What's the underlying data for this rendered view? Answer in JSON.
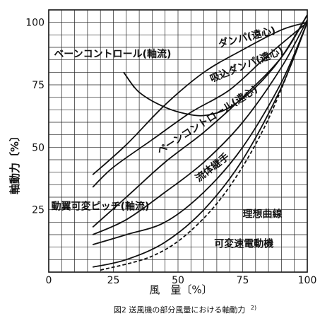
{
  "chart_data": {
    "type": "line",
    "xlabel": "風　量〔%〕",
    "ylabel": "軸動力〔%〕",
    "xlim": [
      0,
      100
    ],
    "ylim": [
      0,
      105
    ],
    "xticks": [
      "0",
      "25",
      "50",
      "75",
      "100"
    ],
    "yticks": [
      "25",
      "50",
      "75",
      "100"
    ],
    "grid": true,
    "caption": "図2 送風機の部分風量における軸動力",
    "caption_ref": "2)",
    "series": [
      {
        "name": "ダンパ(遠心)",
        "dash": false,
        "x": [
          17,
          30,
          45,
          60,
          75,
          90,
          100
        ],
        "y": [
          39,
          51,
          67,
          80,
          89,
          97,
          100
        ]
      },
      {
        "name": "吸込ダンパ(遠心)",
        "dash": false,
        "x": [
          17,
          25,
          40,
          55,
          70,
          85,
          100
        ],
        "y": [
          34,
          42,
          53,
          64,
          73,
          87,
          100
        ]
      },
      {
        "name": "ベーンコントロール(軸流)",
        "dash": false,
        "x": [
          29,
          35,
          45,
          55,
          62,
          70,
          80,
          90,
          100
        ],
        "y": [
          80,
          72,
          66,
          63,
          63,
          66,
          74,
          86,
          103
        ]
      },
      {
        "name": "ベーンコントロール(遠心)",
        "dash": false,
        "x": [
          17,
          30,
          45,
          60,
          75,
          90,
          100
        ],
        "y": [
          18,
          30,
          44,
          56,
          70,
          86,
          103
        ]
      },
      {
        "name": "流体継手",
        "dash": false,
        "x": [
          17,
          30,
          45,
          60,
          75,
          90,
          100
        ],
        "y": [
          15,
          21,
          32,
          44,
          60,
          82,
          101
        ]
      },
      {
        "name": "動翼可変ピッチ(軸流)",
        "dash": false,
        "x": [
          17,
          30,
          45,
          60,
          75,
          90,
          100
        ],
        "y": [
          11,
          15,
          20,
          32,
          50,
          76,
          100
        ]
      },
      {
        "name": "理想曲線",
        "dash": true,
        "x": [
          20,
          40,
          55,
          70,
          85,
          100
        ],
        "y": [
          0.8,
          6.4,
          16.6,
          34.3,
          61.4,
          100
        ]
      },
      {
        "name": "可変速電動機",
        "dash": false,
        "x": [
          17,
          30,
          45,
          60,
          75,
          90,
          100
        ],
        "y": [
          2,
          5,
          12,
          25,
          45,
          74,
          100
        ]
      }
    ],
    "labels": [
      {
        "series": "ダンパ(遠心)",
        "text": "ダンパ(遠心)",
        "angle": -14,
        "x": 66,
        "y": 90
      },
      {
        "series": "吸込ダンパ(遠心)",
        "text": "吸込ダンパ(遠心)",
        "angle": -22,
        "x": 63,
        "y": 76
      },
      {
        "series": "ベーンコントロール(軸流)",
        "text": "ベーンコントロール(軸流)",
        "angle": 0,
        "x": 2,
        "y": 86
      },
      {
        "series": "ベーンコントロール(遠心)",
        "text": "ベーンコントロール(遠心)",
        "angle": -33,
        "x": 43,
        "y": 47
      },
      {
        "series": "流体継手",
        "text": "流体継手",
        "angle": -38,
        "x": 58,
        "y": 36
      },
      {
        "series": "動翼可変ピッチ(軸流)",
        "text": "動翼可変ピッチ(軸流)",
        "angle": 0,
        "x": 1,
        "y": 25
      },
      {
        "series": "理想曲線",
        "text": "理想曲線",
        "angle": 0,
        "x": 75,
        "y": 22
      },
      {
        "series": "可変速電動機",
        "text": "可変速電動機",
        "angle": 0,
        "x": 64,
        "y": 10
      }
    ]
  }
}
